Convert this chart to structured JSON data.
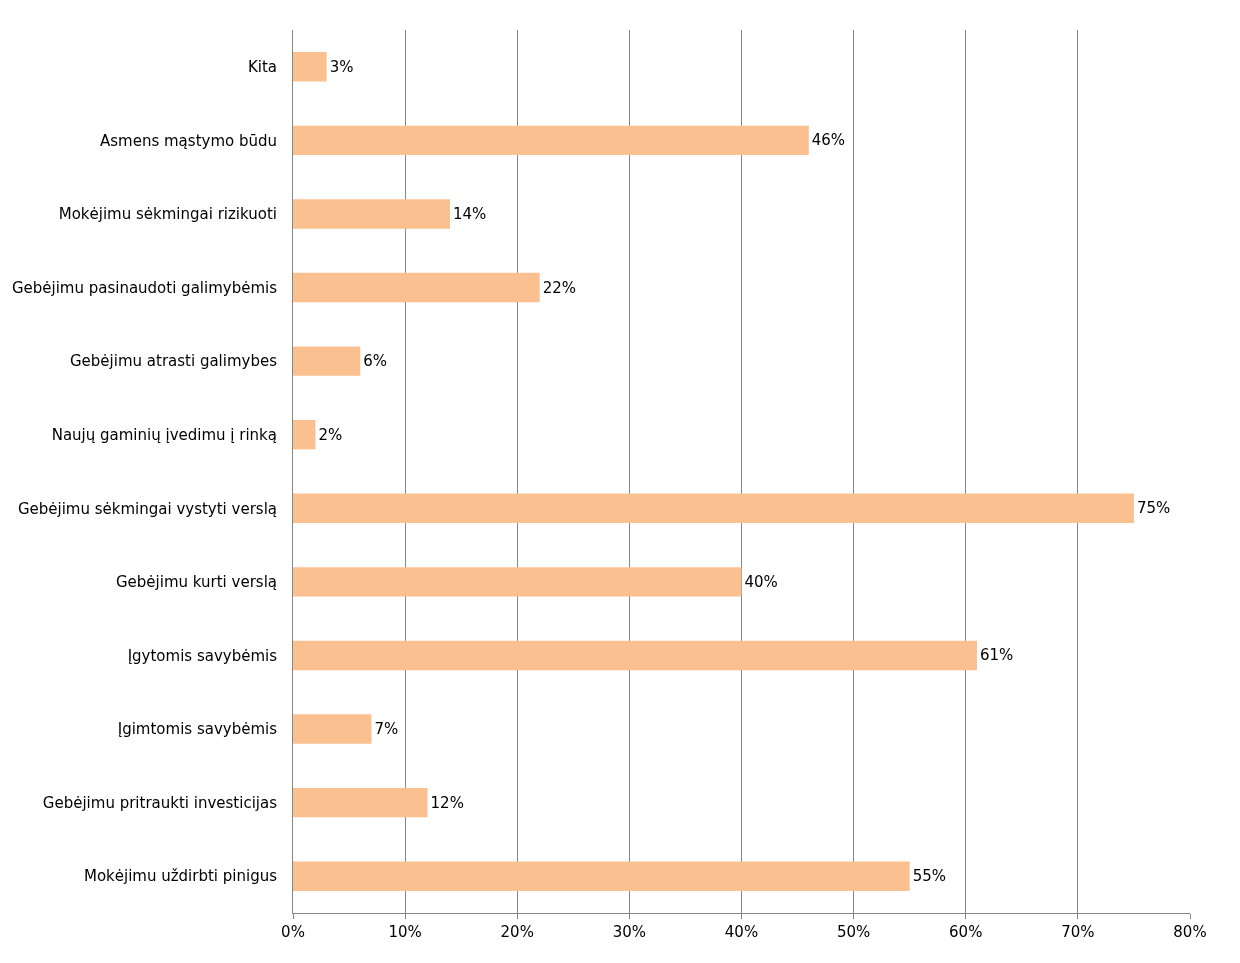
{
  "chart_data": {
    "type": "bar",
    "orientation": "horizontal",
    "categories": [
      "Kita",
      "Asmens mąstymo būdu",
      "Mokėjimu sėkmingai rizikuoti",
      "Gebėjimu pasinaudoti galimybėmis",
      "Gebėjimu atrasti galimybes",
      "Naujų gaminių įvedimu į rinką",
      "Gebėjimu sėkmingai vystyti verslą",
      "Gebėjimu kurti verslą",
      "Įgytomis savybėmis",
      "Įgimtomis savybėmis",
      "Gebėjimu pritraukti investicijas",
      "Mokėjimu uždirbti pinigus"
    ],
    "values": [
      3,
      46,
      14,
      22,
      6,
      2,
      75,
      40,
      61,
      7,
      12,
      55
    ],
    "value_labels": [
      "3%",
      "46%",
      "14%",
      "22%",
      "6%",
      "2%",
      "75%",
      "40%",
      "61%",
      "7%",
      "12%",
      "55%"
    ],
    "color": "#fac090",
    "xlim": [
      0,
      80
    ],
    "xticks": [
      {
        "value": 0,
        "label": "0%"
      },
      {
        "value": 10,
        "label": "10%"
      },
      {
        "value": 20,
        "label": "20%"
      },
      {
        "value": 30,
        "label": "30%"
      },
      {
        "value": 40,
        "label": "40%"
      },
      {
        "value": 50,
        "label": "50%"
      },
      {
        "value": 60,
        "label": "60%"
      },
      {
        "value": 70,
        "label": "70%"
      },
      {
        "value": 80,
        "label": "80%"
      }
    ],
    "grid": "x",
    "legend": false
  }
}
